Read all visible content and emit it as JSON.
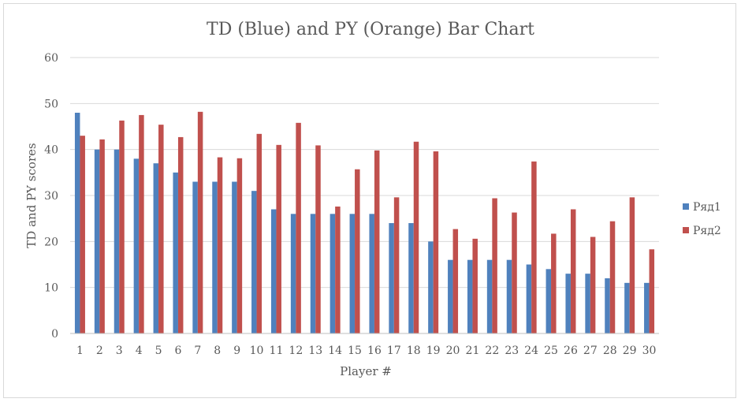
{
  "chart_data": {
    "type": "bar",
    "title": "TD (Blue) and PY (Orange) Bar Chart",
    "xlabel": "Player #",
    "ylabel": "TD and PY scores",
    "ylim": [
      0,
      60
    ],
    "yticks": [
      0,
      10,
      20,
      30,
      40,
      50,
      60
    ],
    "grid": true,
    "legend_position": "right",
    "categories": [
      "1",
      "2",
      "3",
      "4",
      "5",
      "6",
      "7",
      "8",
      "9",
      "10",
      "11",
      "12",
      "13",
      "14",
      "15",
      "16",
      "17",
      "18",
      "19",
      "20",
      "21",
      "22",
      "23",
      "24",
      "25",
      "26",
      "27",
      "28",
      "29",
      "30"
    ],
    "series": [
      {
        "name": "Ряд1",
        "color": "#4f81bd",
        "values": [
          48,
          40,
          40,
          38,
          37,
          35,
          33,
          33,
          33,
          31,
          27,
          26,
          26,
          26,
          26,
          26,
          24,
          24,
          20,
          16,
          16,
          16,
          16,
          15,
          14,
          13,
          13,
          12,
          11,
          11
        ]
      },
      {
        "name": "Ряд2",
        "color": "#c0504d",
        "values": [
          43,
          42.2,
          46.3,
          47.5,
          45.4,
          42.7,
          48.2,
          38.3,
          38.1,
          43.4,
          41,
          45.8,
          40.9,
          27.6,
          35.7,
          39.8,
          29.6,
          41.7,
          39.6,
          22.7,
          20.6,
          29.4,
          26.3,
          37.4,
          21.7,
          27,
          21,
          24.4,
          29.6,
          18.3
        ]
      }
    ]
  },
  "colors": {
    "gridline": "#d9d9d9",
    "axis": "#bfbfbf",
    "text": "#595959"
  }
}
